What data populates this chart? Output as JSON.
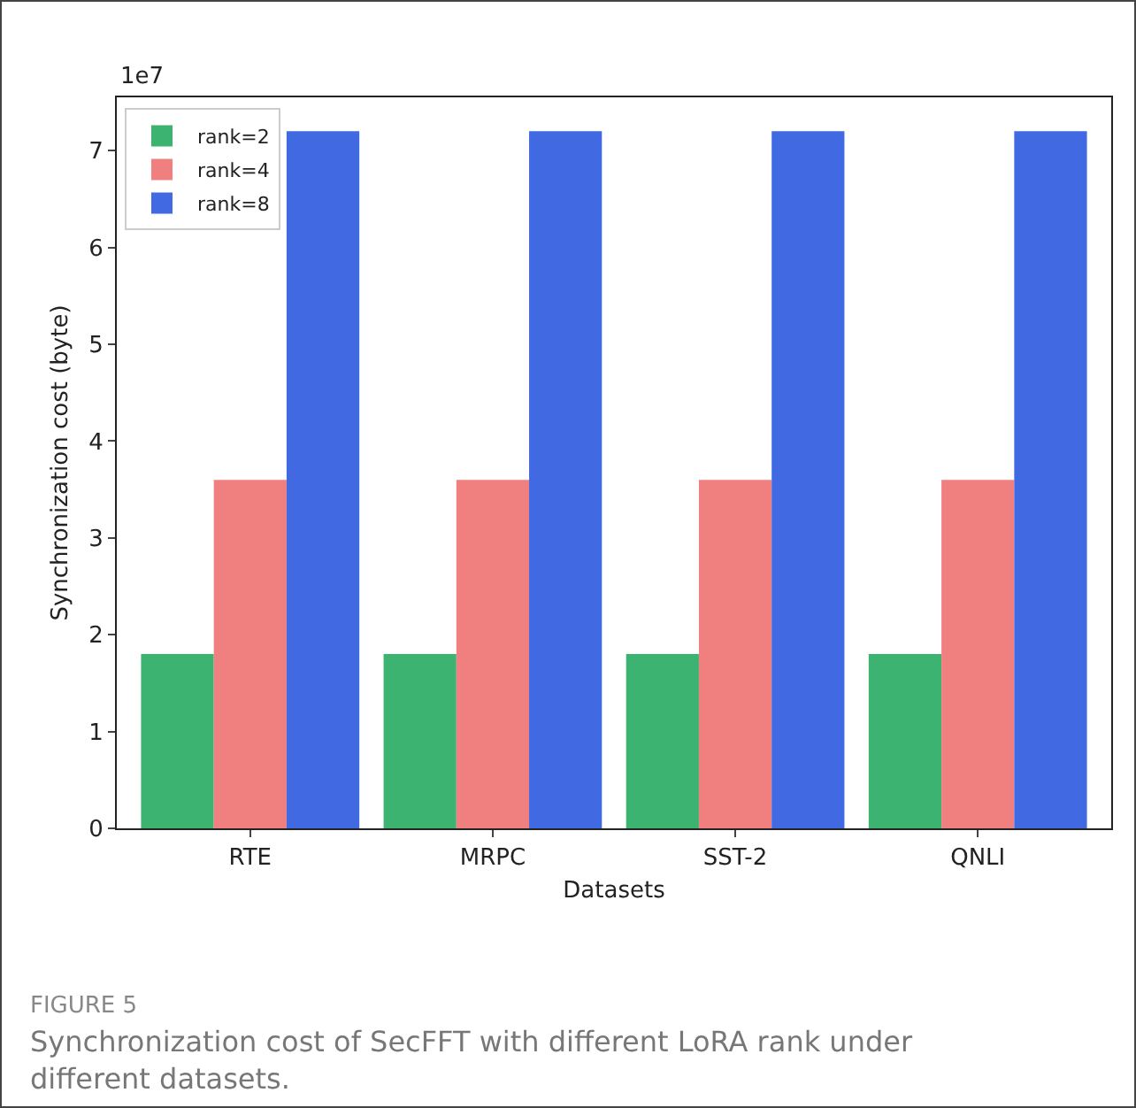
{
  "chart_data": {
    "type": "bar",
    "xlabel": "Datasets",
    "ylabel": "Synchronization cost (byte)",
    "categories": [
      "RTE",
      "MRPC",
      "SST-2",
      "QNLI"
    ],
    "series": [
      {
        "name": "rank=2",
        "color": "#3cb371",
        "values": [
          1.8,
          1.8,
          1.8,
          1.8
        ]
      },
      {
        "name": "rank=4",
        "color": "#f08080",
        "values": [
          3.6,
          3.6,
          3.6,
          3.6
        ]
      },
      {
        "name": "rank=8",
        "color": "#4169e1",
        "values": [
          7.2,
          7.2,
          7.2,
          7.2
        ]
      }
    ],
    "ylim": [
      0,
      7.55
    ],
    "yticks": [
      0,
      1,
      2,
      3,
      4,
      5,
      6,
      7
    ],
    "grid": false,
    "legend": "top left",
    "annotations": [
      "1e7",
      "FIGURE 5",
      "Synchronization cost of SecFFT with different LoRA rank under different datasets."
    ]
  }
}
